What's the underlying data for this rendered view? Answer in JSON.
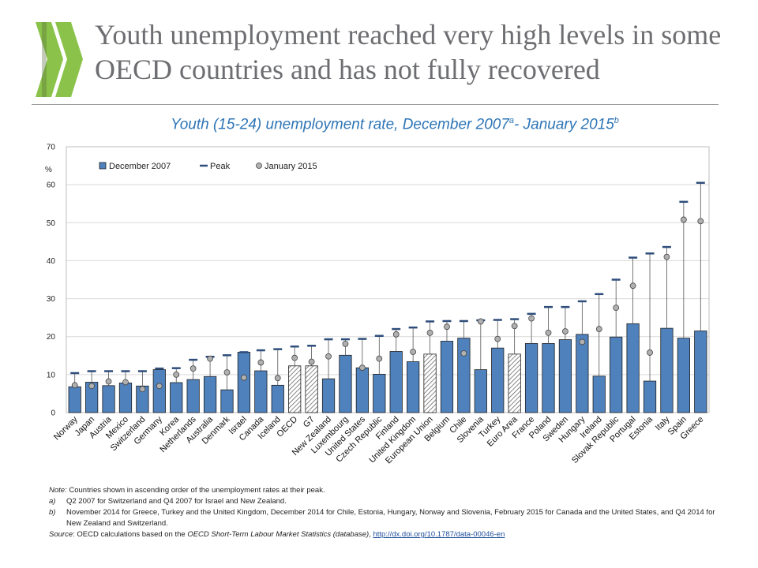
{
  "slide": {
    "title": "Youth unemployment reached very high levels in some OECD countries and has not fully recovered"
  },
  "chart_title": {
    "main": "Youth (15-24) unemployment rate, December 2007",
    "sup_a": "a",
    "mid": "- January 2015",
    "sup_b": "b"
  },
  "colors": {
    "bar": "#4f81bd",
    "bar_outline": "#1f1f1f",
    "peak": "#2e4d7b",
    "marker": "#b0b0b0",
    "title": "#6d6e71",
    "chart_title": "#2e75b6",
    "logo": "#8bc34a"
  },
  "chart_data": {
    "type": "bar",
    "ylabel": "%",
    "ylim": [
      0,
      70
    ],
    "yticks": [
      0,
      10,
      20,
      30,
      40,
      50,
      60,
      70
    ],
    "grid": true,
    "legend_position": "top-left",
    "categories": [
      "Norway",
      "Japan",
      "Austria",
      "Mexico",
      "Switzerland",
      "Germany",
      "Korea",
      "Netherlands",
      "Australia",
      "Denmark",
      "Israel",
      "Canada",
      "Iceland",
      "OECD",
      "G7",
      "New Zealand",
      "Luxembourg",
      "United States",
      "Czech Republic",
      "Finland",
      "United Kingdom",
      "European Union",
      "Belgium",
      "Chile",
      "Slovenia",
      "Turkey",
      "Euro Area",
      "France",
      "Poland",
      "Sweden",
      "Hungary",
      "Ireland",
      "Slovak Republic",
      "Portugal",
      "Estonia",
      "Italy",
      "Spain",
      "Greece"
    ],
    "aggregates": [
      "OECD",
      "G7",
      "European Union",
      "Euro Area"
    ],
    "series": [
      {
        "name": "December 2007",
        "values": [
          6.8,
          8.0,
          7.1,
          7.8,
          7.0,
          11.3,
          7.9,
          8.7,
          9.5,
          6.0,
          15.9,
          11.0,
          7.2,
          12.3,
          12.3,
          8.9,
          15.1,
          11.8,
          10.1,
          16.1,
          13.4,
          15.4,
          18.8,
          19.6,
          11.3,
          17.0,
          15.4,
          18.2,
          18.2,
          19.2,
          20.6,
          9.6,
          19.9,
          23.4,
          8.3,
          22.2,
          19.6,
          21.5
        ]
      },
      {
        "name": "Peak",
        "values": [
          10.4,
          10.9,
          10.9,
          10.9,
          10.9,
          11.6,
          11.7,
          13.9,
          14.7,
          15.1,
          15.9,
          16.4,
          16.7,
          17.4,
          17.6,
          19.3,
          19.3,
          19.4,
          20.2,
          22.0,
          22.4,
          24.0,
          24.1,
          24.1,
          24.3,
          24.4,
          24.6,
          26.0,
          27.8,
          27.8,
          29.3,
          31.2,
          35.0,
          40.8,
          41.9,
          43.6,
          55.5,
          60.5
        ]
      },
      {
        "name": "January 2015",
        "values": [
          7.2,
          7.0,
          8.2,
          8.0,
          6.2,
          7.0,
          10.0,
          11.6,
          14.2,
          10.6,
          9.2,
          13.2,
          9.1,
          14.4,
          13.4,
          14.8,
          18.1,
          11.8,
          14.2,
          20.6,
          16.0,
          21.0,
          22.6,
          15.6,
          24.0,
          19.4,
          22.8,
          24.8,
          21.0,
          21.4,
          18.6,
          22.0,
          27.6,
          33.4,
          15.8,
          41.0,
          50.8,
          50.4
        ]
      }
    ]
  },
  "notes": {
    "note_label": "Note:",
    "note_text": " Countries shown in ascending order of the unemployment rates at their peak.",
    "a_key": "a)",
    "a_text": "Q2 2007 for Switzerland and Q4 2007 for Israel and New Zealand.",
    "b_key": "b)",
    "b_text": "November 2014 for Greece, Turkey and the United Kingdom, December 2014 for Chile, Estonia, Hungary, Norway and Slovenia, February 2015 for Canada and the United States, and Q4 2014 for New Zealand and Switzerland.",
    "source_label": "Source",
    "source_pre": ": OECD calculations based on the ",
    "source_db": "OECD Short-Term Labour Market Statistics (database)",
    "source_sep": ", ",
    "source_link": "http://dx.doi.org/10.1787/data-00046-en"
  }
}
